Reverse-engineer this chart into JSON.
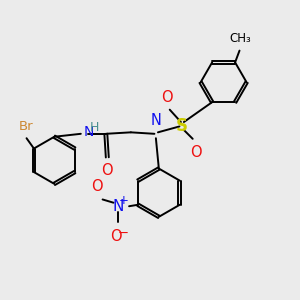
{
  "bg_color": "#ebebeb",
  "bond_color": "black",
  "bond_width": 1.4,
  "atom_colors": {
    "C": "black",
    "H": "#4a9090",
    "N": "#1010ee",
    "O": "#ee1010",
    "S": "#cccc00",
    "Br": "#cc8833"
  },
  "font_size": 9.5
}
